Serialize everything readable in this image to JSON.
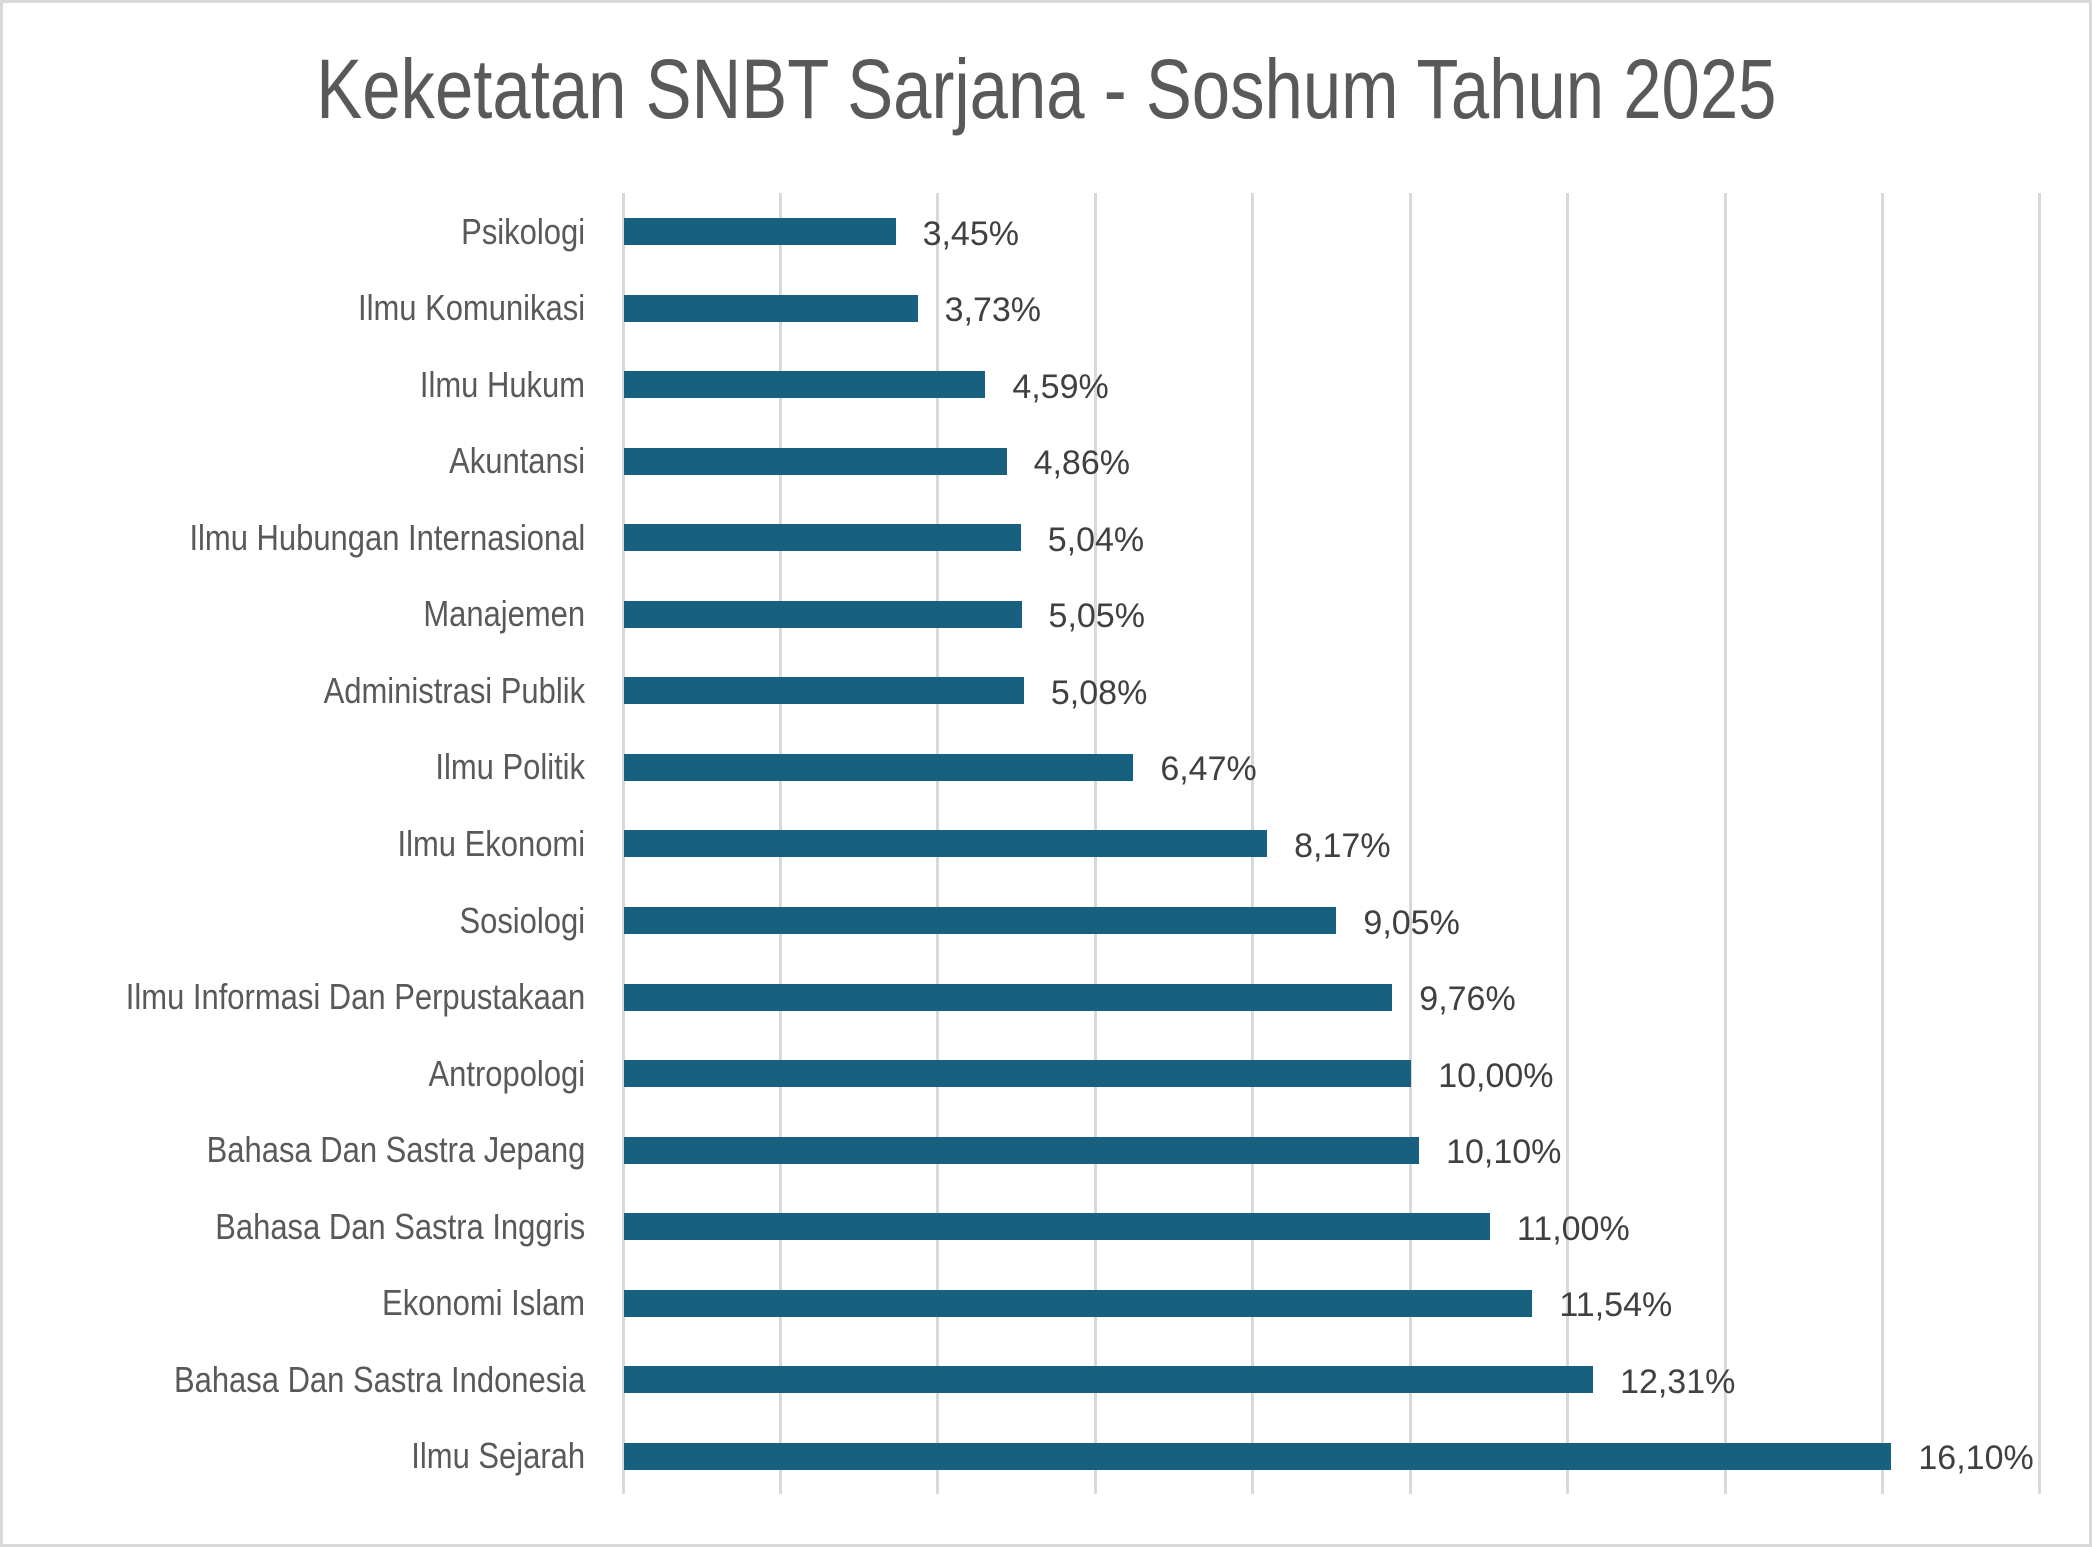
{
  "chart_data": {
    "type": "bar",
    "orientation": "horizontal",
    "title": "Keketatan SNBT Sarjana - Soshum Tahun 2025",
    "xlabel": "",
    "ylabel": "",
    "xlim": [
      0,
      18
    ],
    "grid_step": 2,
    "grid": true,
    "legend": null,
    "bar_color": "#17607f",
    "categories": [
      "Psikologi",
      "Ilmu Komunikasi",
      "Ilmu Hukum",
      "Akuntansi",
      "Ilmu Hubungan Internasional",
      "Manajemen",
      "Administrasi Publik",
      "Ilmu Politik",
      "Ilmu Ekonomi",
      "Sosiologi",
      "Ilmu Informasi Dan Perpustakaan",
      "Antropologi",
      "Bahasa Dan Sastra Jepang",
      "Bahasa Dan Sastra Inggris",
      "Ekonomi Islam",
      "Bahasa Dan Sastra Indonesia",
      "Ilmu Sejarah"
    ],
    "values": [
      3.45,
      3.73,
      4.59,
      4.86,
      5.04,
      5.05,
      5.08,
      6.47,
      8.17,
      9.05,
      9.76,
      10.0,
      10.1,
      11.0,
      11.54,
      12.31,
      16.1
    ],
    "data_labels": [
      "3,45%",
      "3,73%",
      "4,59%",
      "4,86%",
      "5,04%",
      "5,05%",
      "5,08%",
      "6,47%",
      "8,17%",
      "9,05%",
      "9,76%",
      "10,00%",
      "10,10%",
      "11,00%",
      "11,54%",
      "12,31%",
      "16,10%"
    ]
  }
}
